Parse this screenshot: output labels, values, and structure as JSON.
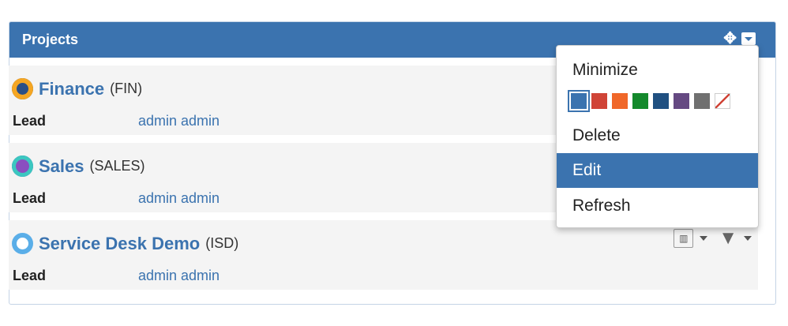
{
  "panel": {
    "title": "Projects"
  },
  "projects": [
    {
      "name": "Finance",
      "key": "(FIN)",
      "lead_label": "Lead",
      "lead": "admin admin",
      "avatar_color": "#f5a623"
    },
    {
      "name": "Sales",
      "key": "(SALES)",
      "lead_label": "Lead",
      "lead": "admin admin",
      "avatar_color": "#3cc7c0"
    },
    {
      "name": "Service Desk Demo",
      "key": "(ISD)",
      "lead_label": "Lead",
      "lead": "admin admin",
      "avatar_color": "#5aaee8"
    }
  ],
  "menu": {
    "minimize": "Minimize",
    "delete": "Delete",
    "edit": "Edit",
    "refresh": "Refresh",
    "active": "Edit",
    "colors": [
      "#3b73af",
      "#d04437",
      "#f06729",
      "#14892c",
      "#205081",
      "#654982",
      "#707070",
      "none"
    ],
    "selected_color": "#3b73af"
  }
}
